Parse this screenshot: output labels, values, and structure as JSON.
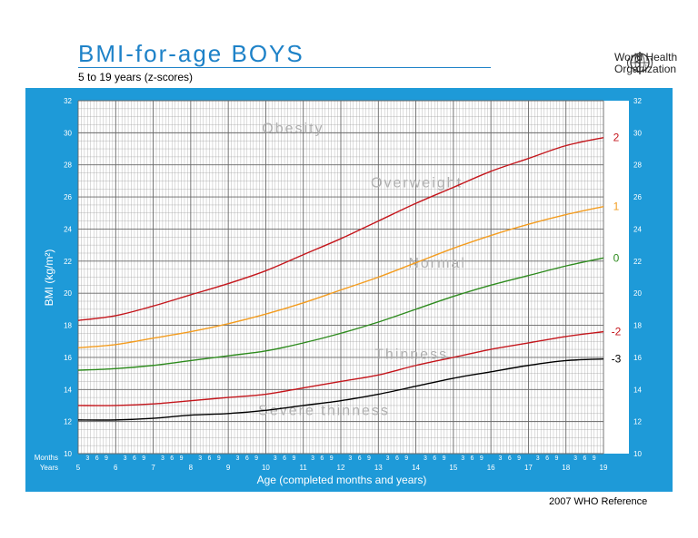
{
  "header": {
    "title": "BMI-for-age  BOYS",
    "subtitle": "5 to 19 years (z-scores)"
  },
  "logo": {
    "line1": "World Health",
    "line2": "Organization",
    "icon": "who-emblem-icon"
  },
  "footer": "2007  WHO Reference",
  "colors": {
    "panel": "#1e9ad8",
    "grid": "#999999",
    "sd2": "#c4161c",
    "sd1": "#f39c1f",
    "sd0": "#2e8b1e",
    "sdneg2": "#c4161c",
    "sdneg3": "#000000",
    "zone_text": "#b0b0b0"
  },
  "chart_data": {
    "type": "line",
    "xlabel": "Age (completed months and years)",
    "ylabel": "BMI (kg/m²)",
    "xlim": [
      5,
      19
    ],
    "ylim": [
      10,
      32
    ],
    "y_ticks": [
      10,
      12,
      14,
      16,
      18,
      20,
      22,
      24,
      26,
      28,
      30,
      32
    ],
    "x_year_ticks": [
      5,
      6,
      7,
      8,
      9,
      10,
      11,
      12,
      13,
      14,
      15,
      16,
      17,
      18,
      19
    ],
    "month_ticks": [
      3,
      6,
      9
    ],
    "row_labels": [
      "Months",
      "Years"
    ],
    "grid": true,
    "x": [
      5,
      6,
      7,
      8,
      9,
      10,
      11,
      12,
      13,
      14,
      15,
      16,
      17,
      18,
      19
    ],
    "series": [
      {
        "name": "2",
        "values": [
          18.3,
          18.6,
          19.2,
          19.9,
          20.6,
          21.4,
          22.4,
          23.4,
          24.5,
          25.6,
          26.6,
          27.6,
          28.4,
          29.2,
          29.7
        ]
      },
      {
        "name": "1",
        "values": [
          16.6,
          16.8,
          17.2,
          17.6,
          18.1,
          18.7,
          19.4,
          20.2,
          21.0,
          21.9,
          22.8,
          23.6,
          24.3,
          24.9,
          25.4
        ]
      },
      {
        "name": "0",
        "values": [
          15.2,
          15.3,
          15.5,
          15.8,
          16.1,
          16.4,
          16.9,
          17.5,
          18.2,
          19.0,
          19.8,
          20.5,
          21.1,
          21.7,
          22.2
        ]
      },
      {
        "name": "-2",
        "values": [
          13.0,
          13.0,
          13.1,
          13.3,
          13.5,
          13.7,
          14.1,
          14.5,
          14.9,
          15.5,
          16.0,
          16.5,
          16.9,
          17.3,
          17.6
        ]
      },
      {
        "name": "-3",
        "values": [
          12.1,
          12.1,
          12.2,
          12.4,
          12.5,
          12.7,
          13.0,
          13.3,
          13.7,
          14.2,
          14.7,
          15.1,
          15.5,
          15.8,
          15.9
        ]
      }
    ],
    "zones": [
      {
        "label": "Obesity",
        "x": 9.9,
        "y": 30.0
      },
      {
        "label": "Overweight",
        "x": 12.8,
        "y": 26.6
      },
      {
        "label": "Normal",
        "x": 13.8,
        "y": 21.6
      },
      {
        "label": "Thinness",
        "x": 12.9,
        "y": 15.9
      },
      {
        "label": "Severe thinness",
        "x": 9.8,
        "y": 12.4
      }
    ]
  }
}
